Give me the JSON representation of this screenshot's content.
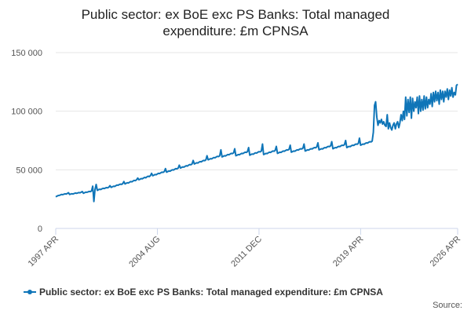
{
  "chart_data": {
    "type": "line",
    "title": [
      "Public sector: ex BoE exc PS Banks: Total managed",
      "expenditure: £m CPNSA"
    ],
    "source": "Source:",
    "categories": [
      "1997 APR",
      null,
      null,
      null,
      null,
      null,
      null,
      null,
      null,
      null,
      null,
      null,
      null,
      null,
      null,
      null,
      null,
      null,
      null,
      null,
      null,
      null,
      null,
      null,
      null,
      null,
      null,
      null,
      null,
      null,
      null,
      null,
      null,
      null,
      null,
      null,
      null,
      null,
      null,
      null,
      null,
      null,
      null,
      null,
      null,
      null,
      null,
      null,
      null,
      null,
      null,
      null,
      null,
      null,
      null,
      null,
      null,
      null,
      null,
      null,
      null,
      null,
      null,
      null,
      null,
      null,
      null,
      null,
      null,
      null,
      null,
      null,
      null,
      null,
      null,
      null,
      null,
      null,
      null,
      null,
      null,
      null,
      null,
      null,
      null,
      null,
      null,
      null,
      "2004 AUG",
      null,
      null,
      null,
      null,
      null,
      null,
      null,
      null,
      null,
      null,
      null,
      null,
      null,
      null,
      null,
      null,
      null,
      null,
      null,
      null,
      null,
      null,
      null,
      null,
      null,
      null,
      null,
      null,
      null,
      null,
      null,
      null,
      null,
      null,
      null,
      null,
      null,
      null,
      null,
      null,
      null,
      null,
      null,
      null,
      null,
      null,
      null,
      null,
      null,
      null,
      null,
      null,
      null,
      null,
      null,
      null,
      null,
      null,
      null,
      null,
      null,
      null,
      null,
      null,
      null,
      null,
      null,
      null,
      null,
      null,
      null,
      null,
      null,
      null,
      null,
      null,
      null,
      null,
      null,
      null,
      null,
      null,
      null,
      null,
      null,
      null,
      null,
      "2011 DEC",
      null,
      null,
      null,
      null,
      null,
      null,
      null,
      null,
      null,
      null,
      null,
      null,
      null,
      null,
      null,
      null,
      null,
      null,
      null,
      null,
      null,
      null,
      null,
      null,
      null,
      null,
      null,
      null,
      null,
      null,
      null,
      null,
      null,
      null,
      null,
      null,
      null,
      null,
      null,
      null,
      null,
      null,
      null,
      null,
      null,
      null,
      null,
      null,
      null,
      null,
      null,
      null,
      null,
      null,
      null,
      null,
      null,
      null,
      null,
      null,
      null,
      null,
      null,
      null,
      null,
      null,
      null,
      null,
      null,
      null,
      null,
      null,
      null,
      null,
      null,
      null,
      null,
      null,
      null,
      null,
      null,
      null,
      null,
      null,
      null,
      null,
      null,
      "2019 APR",
      null,
      null,
      null,
      null,
      null,
      null,
      null,
      null,
      null,
      null,
      null,
      null,
      null,
      null,
      null,
      null,
      null,
      null,
      null,
      null,
      null,
      null,
      null,
      null,
      null,
      null,
      null,
      null,
      null,
      null,
      null,
      null,
      null,
      null,
      null,
      null,
      null,
      null,
      null,
      null,
      null,
      null,
      null,
      null,
      null,
      null,
      null,
      null,
      null,
      null,
      null,
      null,
      null,
      null,
      null,
      null,
      null,
      null,
      null,
      null,
      null,
      null,
      null,
      null,
      null,
      null,
      null,
      null,
      null,
      null,
      null,
      null,
      null,
      null,
      null,
      null,
      null,
      null,
      null,
      null,
      null,
      null,
      null,
      "2026 APR"
    ],
    "series": [
      {
        "name": "Public sector: ex BoE exc PS Banks: Total managed expenditure: £m CPNSA",
        "color": "#0f75b8",
        "values": [
          27000,
          27500,
          28000,
          28200,
          28500,
          29000,
          28800,
          29200,
          29500,
          29300,
          29800,
          30500,
          29000,
          29300,
          29600,
          29400,
          29800,
          30200,
          29900,
          30300,
          30600,
          30400,
          30900,
          31500,
          30000,
          30500,
          31000,
          30800,
          31200,
          31600,
          31400,
          32000,
          36000,
          23000,
          33000,
          37500,
          32500,
          33000,
          33400,
          33200,
          33800,
          34200,
          34000,
          34500,
          34800,
          34600,
          35200,
          36500,
          35000,
          35500,
          36000,
          35800,
          36400,
          37000,
          36800,
          37400,
          37800,
          37600,
          38200,
          40000,
          38000,
          38500,
          39000,
          38800,
          39500,
          40000,
          39800,
          40500,
          41000,
          40800,
          41500,
          43000,
          41500,
          42000,
          42500,
          42300,
          43000,
          43500,
          43200,
          44000,
          44500,
          44200,
          45000,
          47000,
          45000,
          45500,
          46000,
          45800,
          46500,
          47000,
          46800,
          47500,
          48000,
          47800,
          48500,
          51000,
          48000,
          48500,
          49000,
          48800,
          49500,
          50000,
          49800,
          50500,
          51000,
          50800,
          51500,
          54000,
          51500,
          52000,
          52500,
          52300,
          53000,
          53500,
          53200,
          54000,
          54500,
          54300,
          55000,
          58000,
          55000,
          55500,
          56000,
          55800,
          56500,
          57000,
          56800,
          57500,
          58000,
          57800,
          58500,
          62000,
          58500,
          59000,
          59500,
          59300,
          60000,
          60500,
          60300,
          61000,
          61500,
          61300,
          62000,
          67000,
          61000,
          61500,
          62000,
          61800,
          62500,
          63000,
          62800,
          63500,
          64000,
          63800,
          64500,
          68000,
          62000,
          62500,
          63000,
          62800,
          63500,
          64000,
          63800,
          64500,
          65000,
          64800,
          65500,
          69000,
          62500,
          63000,
          63500,
          63300,
          64000,
          64500,
          64300,
          65000,
          65500,
          65300,
          66000,
          72000,
          63000,
          63500,
          64000,
          63800,
          64500,
          65000,
          64800,
          65500,
          66000,
          65800,
          66500,
          70000,
          64000,
          64500,
          65000,
          64800,
          65500,
          66000,
          65800,
          66500,
          67000,
          66800,
          67500,
          71000,
          65000,
          65500,
          66000,
          65800,
          66500,
          67000,
          66800,
          67500,
          68000,
          67800,
          68500,
          72000,
          66000,
          66500,
          67000,
          66800,
          67500,
          68000,
          67800,
          68500,
          69000,
          68800,
          69500,
          73000,
          67000,
          67500,
          68000,
          67800,
          68500,
          69000,
          68800,
          69500,
          70000,
          69800,
          70500,
          74000,
          68000,
          68500,
          69000,
          68800,
          69500,
          70000,
          69800,
          70500,
          71000,
          70800,
          71500,
          75000,
          69000,
          69500,
          70000,
          69800,
          70500,
          71000,
          70800,
          71500,
          72000,
          71800,
          72500,
          77000,
          71000,
          71500,
          72000,
          71800,
          72500,
          73000,
          72800,
          73500,
          74000,
          73800,
          74500,
          82000,
          105000,
          108000,
          95000,
          88000,
          92000,
          90000,
          93000,
          89000,
          91000,
          88000,
          87000,
          97000,
          85000,
          90000,
          86000,
          84000,
          88000,
          90000,
          85000,
          89000,
          91000,
          86000,
          90000,
          97000,
          92000,
          100000,
          93000,
          112000,
          96000,
          110000,
          99000,
          112000,
          94000,
          111000,
          100000,
          108000,
          103000,
          112000,
          98000,
          113000,
          100000,
          110000,
          101000,
          113000,
          102000,
          112000,
          103000,
          110000,
          106000,
          115000,
          104000,
          116000,
          108000,
          117000,
          109000,
          116000,
          106000,
          118000,
          110000,
          117000,
          108000,
          117000,
          112000,
          119000,
          110000,
          118000,
          113000,
          120000,
          112000,
          116000,
          114000,
          122000,
          123000
        ]
      }
    ],
    "ylim": [
      0,
      150000
    ],
    "yticks": [
      0,
      {
        "value": 50000,
        "label": "50 000"
      },
      {
        "value": 100000,
        "label": "100 000"
      },
      {
        "value": 150000,
        "label": "150 000"
      }
    ],
    "grid": true
  }
}
